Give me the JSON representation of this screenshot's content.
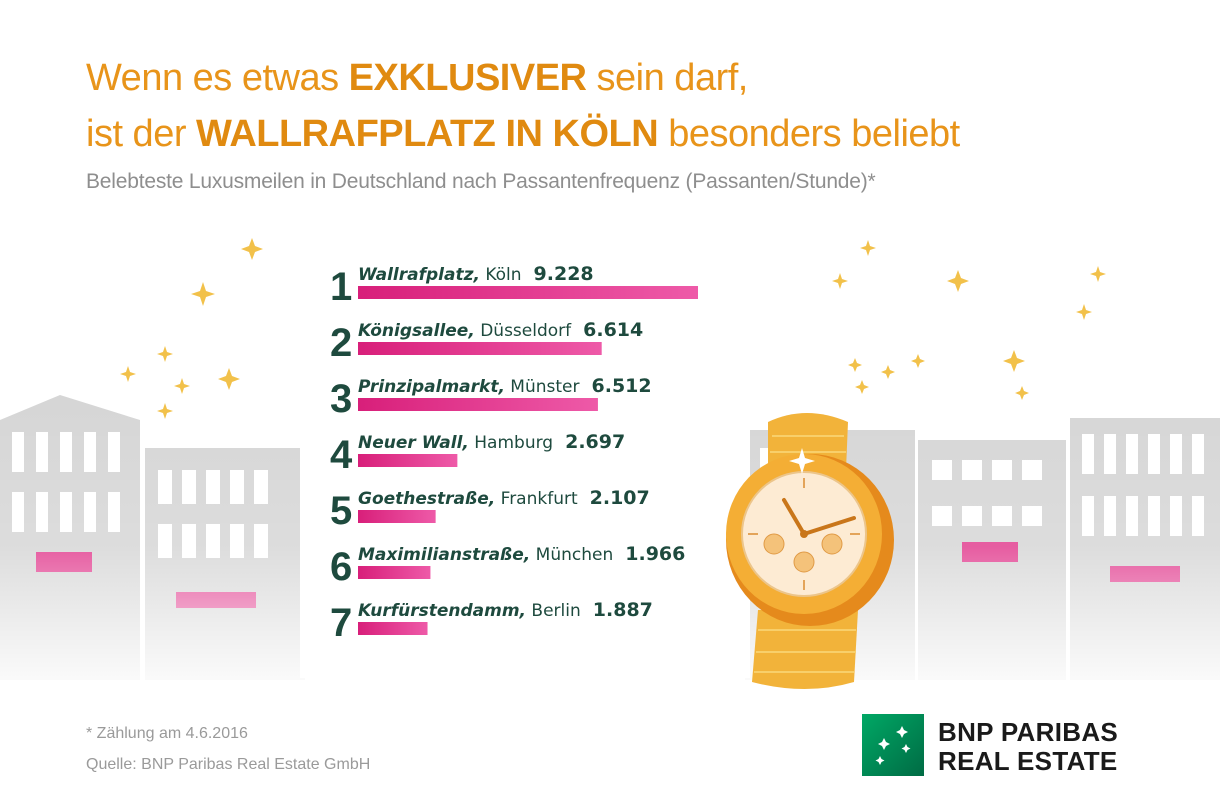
{
  "title": {
    "line1_pre": "Wenn es etwas ",
    "line1_bold": "EXKLUSIVER",
    "line1_post": " sein darf,",
    "line2_pre": "ist der ",
    "line2_bold": "WALLRAFPLATZ IN KÖLN",
    "line2_post": " besonders beliebt"
  },
  "subtitle": "Belebteste Luxusmeilen in Deutschland nach Passantenfrequenz (Passanten/Stunde)*",
  "footnote": "* Zählung am 4.6.2016",
  "source": "Quelle: BNP Paribas Real Estate GmbH",
  "brand": {
    "line1": "BNP PARIBAS",
    "line2": "REAL ESTATE"
  },
  "colors": {
    "accent": "#e8941a",
    "bar": "#e0358a",
    "text": "#1e4a3e",
    "logo": "#00915a"
  },
  "icons": [
    "star-icon",
    "wristwatch-icon",
    "bnp-paribas-logo-icon",
    "building-icon"
  ],
  "chart_data": {
    "type": "bar",
    "orientation": "horizontal",
    "categories": [
      "Wallrafplatz",
      "Königsallee",
      "Prinzipalmarkt",
      "Neuer Wall",
      "Goethestraße",
      "Maximilianstraße",
      "Kurfürstendamm"
    ],
    "ranks": [
      "1",
      "2",
      "3",
      "4",
      "5",
      "6",
      "7"
    ],
    "cities": [
      "Köln",
      "Düsseldorf",
      "Münster",
      "Hamburg",
      "Frankfurt",
      "München",
      "Berlin"
    ],
    "street_labels": [
      "Wallrafplatz,",
      "Königsallee,",
      "Prinzipalmarkt,",
      "Neuer Wall,",
      "Goethestraße,",
      "Maximilianstraße,",
      "Kurfürstendamm,"
    ],
    "value_labels": [
      "9.228",
      "6.614",
      "6.512",
      "2.697",
      "2.107",
      "1.966",
      "1.887"
    ],
    "values": [
      9228,
      6614,
      6512,
      2697,
      2107,
      1966,
      1887
    ],
    "xlim": [
      0,
      9228
    ]
  }
}
